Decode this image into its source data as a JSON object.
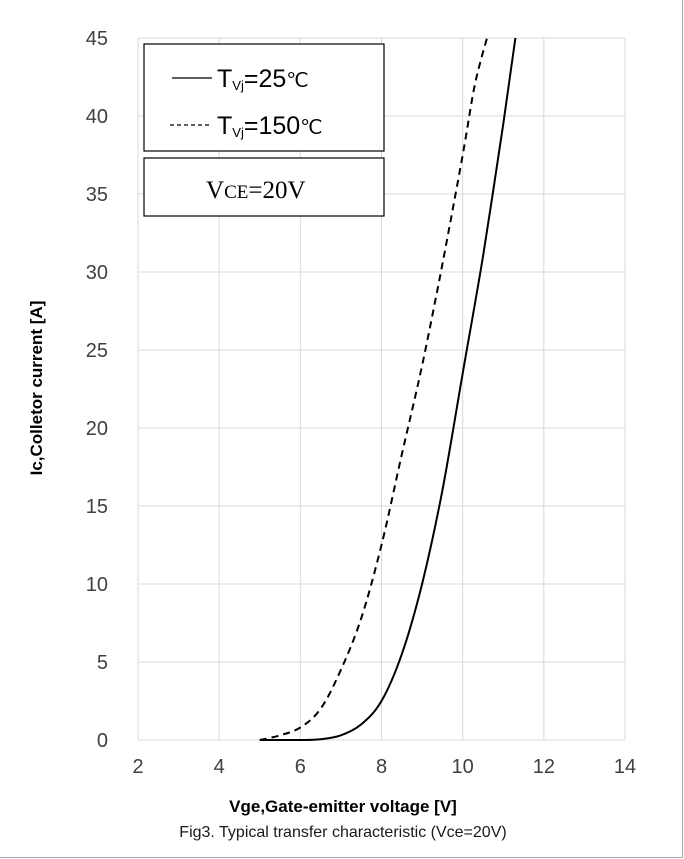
{
  "chart_data": {
    "type": "line",
    "title": "",
    "caption": "Fig3. Typical transfer characteristic (Vce=20V)",
    "xlabel": "Vge,Gate-emitter voltage [V]",
    "ylabel": "Ic,Colletor current [A]",
    "xlim": [
      2,
      14
    ],
    "ylim": [
      0,
      45
    ],
    "xticks": [
      "2",
      "4",
      "6",
      "8",
      "10",
      "12",
      "14"
    ],
    "yticks": [
      "0",
      "5",
      "10",
      "15",
      "20",
      "25",
      "30",
      "35",
      "40",
      "45"
    ],
    "grid": true,
    "legend_position": "top-left",
    "series": [
      {
        "name": "TVj=25℃",
        "name_parts": {
          "main": "T",
          "sub": "Vj",
          "rest": "=25",
          "unit": "℃"
        },
        "style": "solid",
        "color": "#000000",
        "x": [
          5.0,
          6.0,
          6.5,
          7.0,
          7.5,
          8.0,
          8.5,
          9.0,
          9.5,
          10.0,
          10.5,
          11.0,
          11.3
        ],
        "y": [
          0,
          0,
          0.05,
          0.3,
          1.0,
          2.5,
          5.5,
          10.0,
          16.0,
          23.5,
          31.0,
          39.5,
          45.0
        ]
      },
      {
        "name": "TVj=150℃",
        "name_parts": {
          "main": "T",
          "sub": "Vj",
          "rest": "=150",
          "unit": "℃"
        },
        "style": "dashed",
        "color": "#000000",
        "x": [
          5.0,
          5.5,
          6.0,
          6.5,
          7.0,
          7.5,
          8.0,
          8.5,
          9.0,
          9.5,
          10.0,
          10.3,
          10.6
        ],
        "y": [
          0,
          0.3,
          0.8,
          2.0,
          4.5,
          7.8,
          12.5,
          18.3,
          24.0,
          30.5,
          37.5,
          42.0,
          45.0
        ]
      }
    ],
    "annotation": {
      "main": "V",
      "sub": "CE",
      "rest": "=20V"
    }
  }
}
